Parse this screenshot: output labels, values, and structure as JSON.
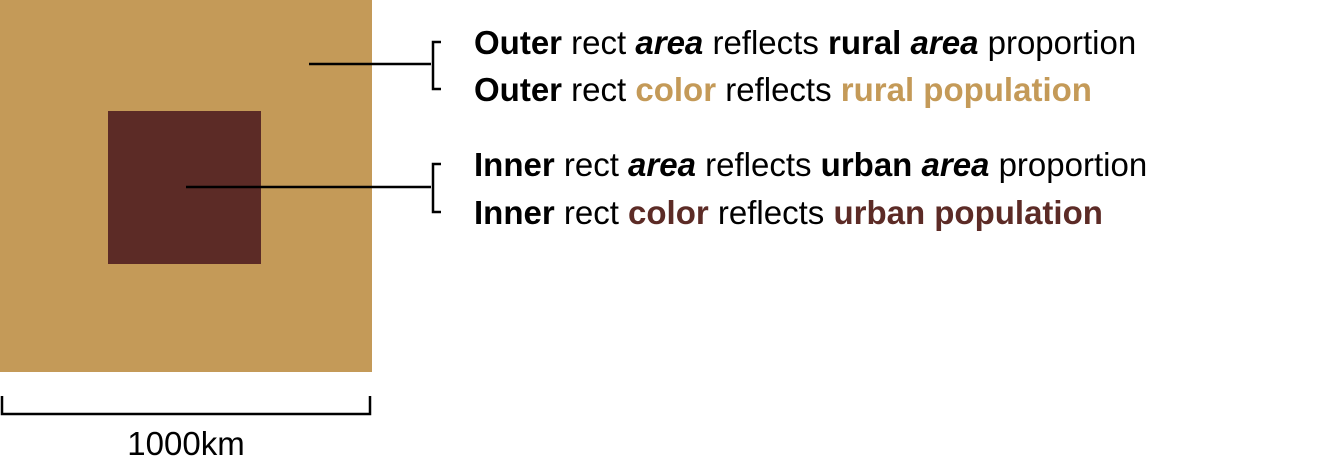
{
  "colors": {
    "rural": "#C49A58",
    "urban": "#5C2B26",
    "line": "#000000",
    "text": "#000000"
  },
  "legend": {
    "outer_area": {
      "w1": "Outer",
      "w2": " rect ",
      "w3": "area",
      "w4": " reflects ",
      "w5": "rural",
      "w6": " ",
      "w7": "area",
      "w8": " proportion"
    },
    "outer_color": {
      "w1": "Outer",
      "w2": " rect ",
      "w3": "color",
      "w4": " reflects ",
      "w5": "rural population"
    },
    "inner_area": {
      "w1": "Inner",
      "w2": " rect ",
      "w3": "area",
      "w4": " reflects ",
      "w5": "urban",
      "w6": " ",
      "w7": "area",
      "w8": " proportion"
    },
    "inner_color": {
      "w1": "Inner",
      "w2": " rect ",
      "w3": "color",
      "w4": " reflects ",
      "w5": "urban population"
    }
  },
  "scale": {
    "label": "1000km"
  }
}
